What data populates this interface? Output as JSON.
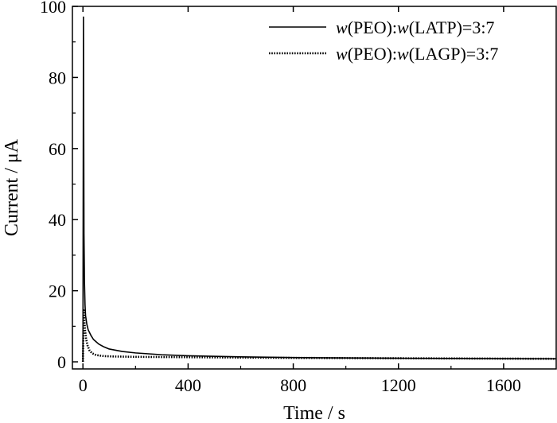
{
  "chart_data": {
    "type": "line",
    "title": "",
    "xlabel": "Time / s",
    "ylabel": "Current / μA",
    "xlim": [
      -40,
      1800
    ],
    "ylim": [
      -2,
      100
    ],
    "xticks": [
      0,
      400,
      800,
      1200,
      1600
    ],
    "yticks": [
      0,
      20,
      40,
      60,
      80,
      100
    ],
    "xtick_labels": [
      "0",
      "400",
      "800",
      "1200",
      "1600"
    ],
    "ytick_labels": [
      "0",
      "20",
      "40",
      "60",
      "80",
      "100"
    ],
    "grid": false,
    "legend_position": "top-right",
    "series": [
      {
        "name": "w(PEO):w(LATP)=3:7",
        "legend_parts": [
          {
            "t": "w",
            "i": true
          },
          {
            "t": "(PEO):",
            "i": false
          },
          {
            "t": "w",
            "i": true
          },
          {
            "t": "(LATP)=3:7",
            "i": false
          }
        ],
        "style": "solid",
        "color": "#000000",
        "x": [
          0,
          2,
          4,
          6,
          8,
          10,
          15,
          20,
          30,
          40,
          60,
          80,
          100,
          150,
          200,
          300,
          400,
          600,
          800,
          1000,
          1200,
          1400,
          1600,
          1800
        ],
        "y": [
          0,
          97,
          36,
          22,
          16,
          13,
          10.5,
          9.0,
          7.5,
          6.3,
          5.0,
          4.2,
          3.6,
          2.9,
          2.5,
          2.0,
          1.7,
          1.4,
          1.2,
          1.1,
          1.0,
          0.95,
          0.9,
          0.85
        ]
      },
      {
        "name": "w(PEO):w(LAGP)=3:7",
        "legend_parts": [
          {
            "t": "w",
            "i": true
          },
          {
            "t": "(PEO):",
            "i": false
          },
          {
            "t": "w",
            "i": true
          },
          {
            "t": "(LAGP)=3:7",
            "i": false
          }
        ],
        "style": "dotted",
        "color": "#000000",
        "x": [
          0,
          3,
          5,
          8,
          12,
          18,
          25,
          35,
          50,
          80,
          120,
          200,
          400,
          600,
          800,
          1000,
          1200,
          1400,
          1600,
          1800
        ],
        "y": [
          0,
          14.5,
          12,
          9,
          6.5,
          4.5,
          3.2,
          2.4,
          1.9,
          1.6,
          1.5,
          1.4,
          1.3,
          1.2,
          1.1,
          1.05,
          1.0,
          0.95,
          0.9,
          0.85
        ]
      }
    ]
  }
}
